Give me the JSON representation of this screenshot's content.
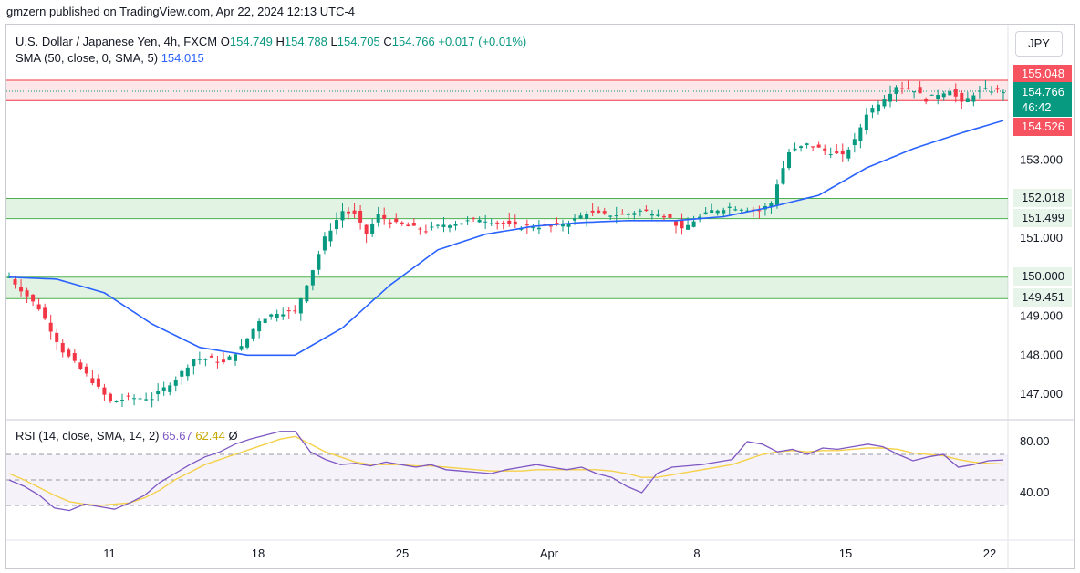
{
  "header": {
    "published": "gmzern published on TradingView.com, Apr 22, 2024 12:13 UTC-4"
  },
  "legend": {
    "symbol": "U.S. Dollar / Japanese Yen, 4h, FXCM",
    "open_label": "O",
    "open": "154.749",
    "high_label": "H",
    "high": "154.788",
    "low_label": "L",
    "low": "154.705",
    "close_label": "C",
    "close": "154.766",
    "change": "+0.017 (+0.01%)",
    "sma_label": "SMA (50, close, 0, SMA, 5)",
    "sma_value": "154.015"
  },
  "rsi_legend": {
    "label": "RSI (14, close, SMA, 14, 2)",
    "rsi": "65.67",
    "rsi_ma": "62.44",
    "extra": "Ø"
  },
  "currency_button": "JPY",
  "price_tags": {
    "resistance_top": "155.048",
    "last": "154.766",
    "countdown": "46:42",
    "resistance_bottom": "154.526",
    "zone1_top": "152.018",
    "zone1_bottom": "151.499",
    "zone2_top": "150.000",
    "zone2_bottom": "149.451"
  },
  "colors": {
    "up": "#089981",
    "down": "#f23645",
    "sma": "#2962ff",
    "rsi": "#7e57c2",
    "rsi_ma": "#f5d14a",
    "resistance": "#f23645",
    "support": "#4caf50"
  },
  "chart_data": [
    {
      "type": "candlestick",
      "title": "U.S. Dollar / Japanese Yen, 4h, FXCM",
      "x_ticks": [
        "11",
        "18",
        "25",
        "Apr",
        "8",
        "15",
        "22"
      ],
      "y_ticks": [
        "153.000",
        "151.000",
        "149.000",
        "148.000",
        "147.000"
      ],
      "ylim": [
        146.3,
        155.5
      ],
      "zones": [
        {
          "name": "resistance",
          "top": 155.048,
          "bottom": 154.526
        },
        {
          "name": "support-1",
          "top": 152.018,
          "bottom": 151.499
        },
        {
          "name": "support-2",
          "top": 150.0,
          "bottom": 149.451
        }
      ],
      "path": [
        [
          0,
          150.0
        ],
        [
          5,
          149.2
        ],
        [
          9,
          148.1
        ],
        [
          13,
          147.5
        ],
        [
          17,
          146.8
        ],
        [
          20,
          146.9
        ],
        [
          24,
          146.9
        ],
        [
          28,
          147.4
        ],
        [
          31,
          147.9
        ],
        [
          34,
          147.9
        ],
        [
          36,
          147.8
        ],
        [
          39,
          148.2
        ],
        [
          42,
          148.9
        ],
        [
          45,
          149.1
        ],
        [
          48,
          149.1
        ],
        [
          51,
          150.2
        ],
        [
          53,
          151.0
        ],
        [
          56,
          151.7
        ],
        [
          58,
          151.6
        ],
        [
          60,
          151.1
        ],
        [
          62,
          151.6
        ],
        [
          64,
          151.4
        ],
        [
          67,
          151.3
        ],
        [
          70,
          151.2
        ],
        [
          73,
          151.35
        ],
        [
          76,
          151.4
        ],
        [
          79,
          151.5
        ],
        [
          82,
          151.4
        ],
        [
          85,
          151.3
        ],
        [
          88,
          151.3
        ],
        [
          91,
          151.3
        ],
        [
          94,
          151.4
        ],
        [
          97,
          151.65
        ],
        [
          100,
          151.6
        ],
        [
          103,
          151.6
        ],
        [
          106,
          151.7
        ],
        [
          109,
          151.65
        ],
        [
          111,
          151.5
        ],
        [
          113,
          151.2
        ],
        [
          115,
          151.45
        ],
        [
          118,
          151.7
        ],
        [
          121,
          151.8
        ],
        [
          124,
          151.75
        ],
        [
          126,
          151.7
        ],
        [
          128,
          151.9
        ],
        [
          129,
          152.4
        ],
        [
          131,
          153.2
        ],
        [
          134,
          153.4
        ],
        [
          136,
          153.3
        ],
        [
          138,
          153.2
        ],
        [
          140,
          153.1
        ],
        [
          142,
          153.5
        ],
        [
          144,
          154.2
        ],
        [
          147,
          154.6
        ],
        [
          149,
          154.9
        ],
        [
          152,
          154.8
        ],
        [
          154,
          154.55
        ],
        [
          156,
          154.7
        ],
        [
          158,
          154.8
        ],
        [
          160,
          154.45
        ],
        [
          162,
          154.7
        ],
        [
          164,
          154.8
        ],
        [
          167,
          154.766
        ]
      ],
      "sma": [
        [
          0,
          150.0
        ],
        [
          8,
          149.95
        ],
        [
          16,
          149.6
        ],
        [
          24,
          148.8
        ],
        [
          32,
          148.2
        ],
        [
          40,
          148.0
        ],
        [
          48,
          148.0
        ],
        [
          56,
          148.7
        ],
        [
          64,
          149.8
        ],
        [
          72,
          150.7
        ],
        [
          80,
          151.1
        ],
        [
          88,
          151.3
        ],
        [
          96,
          151.4
        ],
        [
          104,
          151.45
        ],
        [
          112,
          151.45
        ],
        [
          120,
          151.55
        ],
        [
          128,
          151.8
        ],
        [
          136,
          152.1
        ],
        [
          144,
          152.8
        ],
        [
          152,
          153.3
        ],
        [
          160,
          153.7
        ],
        [
          167,
          154.015
        ]
      ]
    },
    {
      "type": "line",
      "title": "RSI (14, close, SMA, 14, 2)",
      "y_ticks": [
        "80.00",
        "40.00"
      ],
      "ylim": [
        10,
        95
      ],
      "bands": [
        70,
        50,
        30
      ],
      "series": [
        {
          "name": "RSI",
          "values": [
            50,
            45,
            38,
            28,
            26,
            31,
            29,
            27,
            32,
            38,
            48,
            55,
            62,
            68,
            72,
            78,
            82,
            85,
            88,
            88,
            72,
            66,
            62,
            63,
            61,
            64,
            62,
            60,
            62,
            58,
            57,
            56,
            55,
            58,
            60,
            62,
            60,
            58,
            60,
            55,
            52,
            45,
            40,
            55,
            60,
            61,
            62,
            64,
            66,
            80,
            78,
            72,
            74,
            70,
            75,
            74,
            76,
            78,
            76,
            70,
            65,
            68,
            70,
            60,
            62,
            65,
            65.67
          ]
        },
        {
          "name": "RSI-based MA",
          "values": [
            55,
            50,
            44,
            38,
            33,
            31,
            30,
            31,
            32,
            36,
            42,
            50,
            56,
            62,
            66,
            70,
            74,
            78,
            82,
            84,
            78,
            72,
            68,
            64,
            62,
            62,
            62,
            61,
            61,
            60,
            59,
            58,
            57,
            57,
            57,
            58,
            58,
            58,
            58,
            58,
            57,
            55,
            52,
            52,
            54,
            56,
            58,
            60,
            62,
            66,
            70,
            72,
            73,
            72,
            73,
            73,
            74,
            75,
            75,
            74,
            71,
            70,
            69,
            66,
            64,
            63,
            62.44
          ]
        }
      ],
      "x_ticks": [
        "11",
        "18",
        "25",
        "Apr",
        "8",
        "15",
        "22"
      ]
    }
  ]
}
